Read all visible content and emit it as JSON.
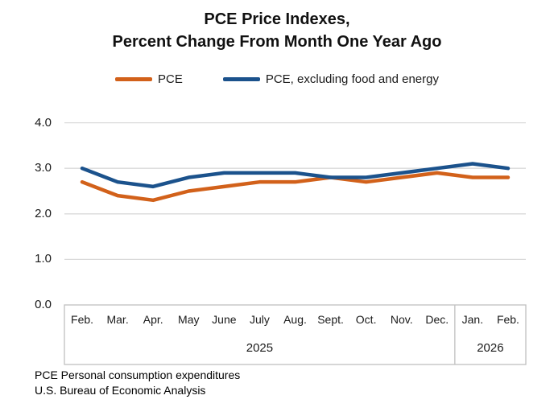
{
  "title": {
    "line1": "PCE Price Indexes,",
    "line2": "Percent Change From Month One Year Ago"
  },
  "legend": [
    {
      "label": "PCE",
      "color": "#D2611A"
    },
    {
      "label": "PCE, excluding food and energy",
      "color": "#1B528C"
    }
  ],
  "footer": {
    "line1": "PCE Personal consumption expenditures",
    "line2": "U.S. Bureau of Economic Analysis"
  },
  "colors": {
    "pce_line": "#D2611A",
    "core_pce_line": "#1B528C",
    "gridline": "#D9D9D9",
    "axis_box_border": "#BFBFBF",
    "text": "#1A1A1A"
  },
  "chart_data": {
    "type": "line",
    "categories": [
      "Feb.",
      "Mar.",
      "Apr.",
      "May",
      "June",
      "July",
      "Aug.",
      "Sept.",
      "Oct.",
      "Nov.",
      "Dec.",
      "Jan.",
      "Feb."
    ],
    "year_groups": [
      {
        "label": "2025",
        "span": 11
      },
      {
        "label": "2026",
        "span": 2
      }
    ],
    "series": [
      {
        "name": "PCE",
        "color": "#D2611A",
        "values": [
          2.7,
          2.4,
          2.3,
          2.5,
          2.6,
          2.7,
          2.7,
          2.8,
          2.7,
          2.8,
          2.9,
          2.8,
          2.8
        ]
      },
      {
        "name": "PCE, excluding food and energy",
        "color": "#1B528C",
        "values": [
          3.0,
          2.7,
          2.6,
          2.8,
          2.9,
          2.9,
          2.9,
          2.8,
          2.8,
          2.9,
          3.0,
          3.1,
          3.0
        ]
      }
    ],
    "title": "PCE Price Indexes, Percent Change From Month One Year Ago",
    "xlabel": "",
    "ylabel": "",
    "ylim": [
      0.0,
      4.0
    ],
    "yticks": [
      "0.0",
      "1.0",
      "2.0",
      "3.0",
      "4.0"
    ],
    "grid": true,
    "legend_position": "top"
  }
}
